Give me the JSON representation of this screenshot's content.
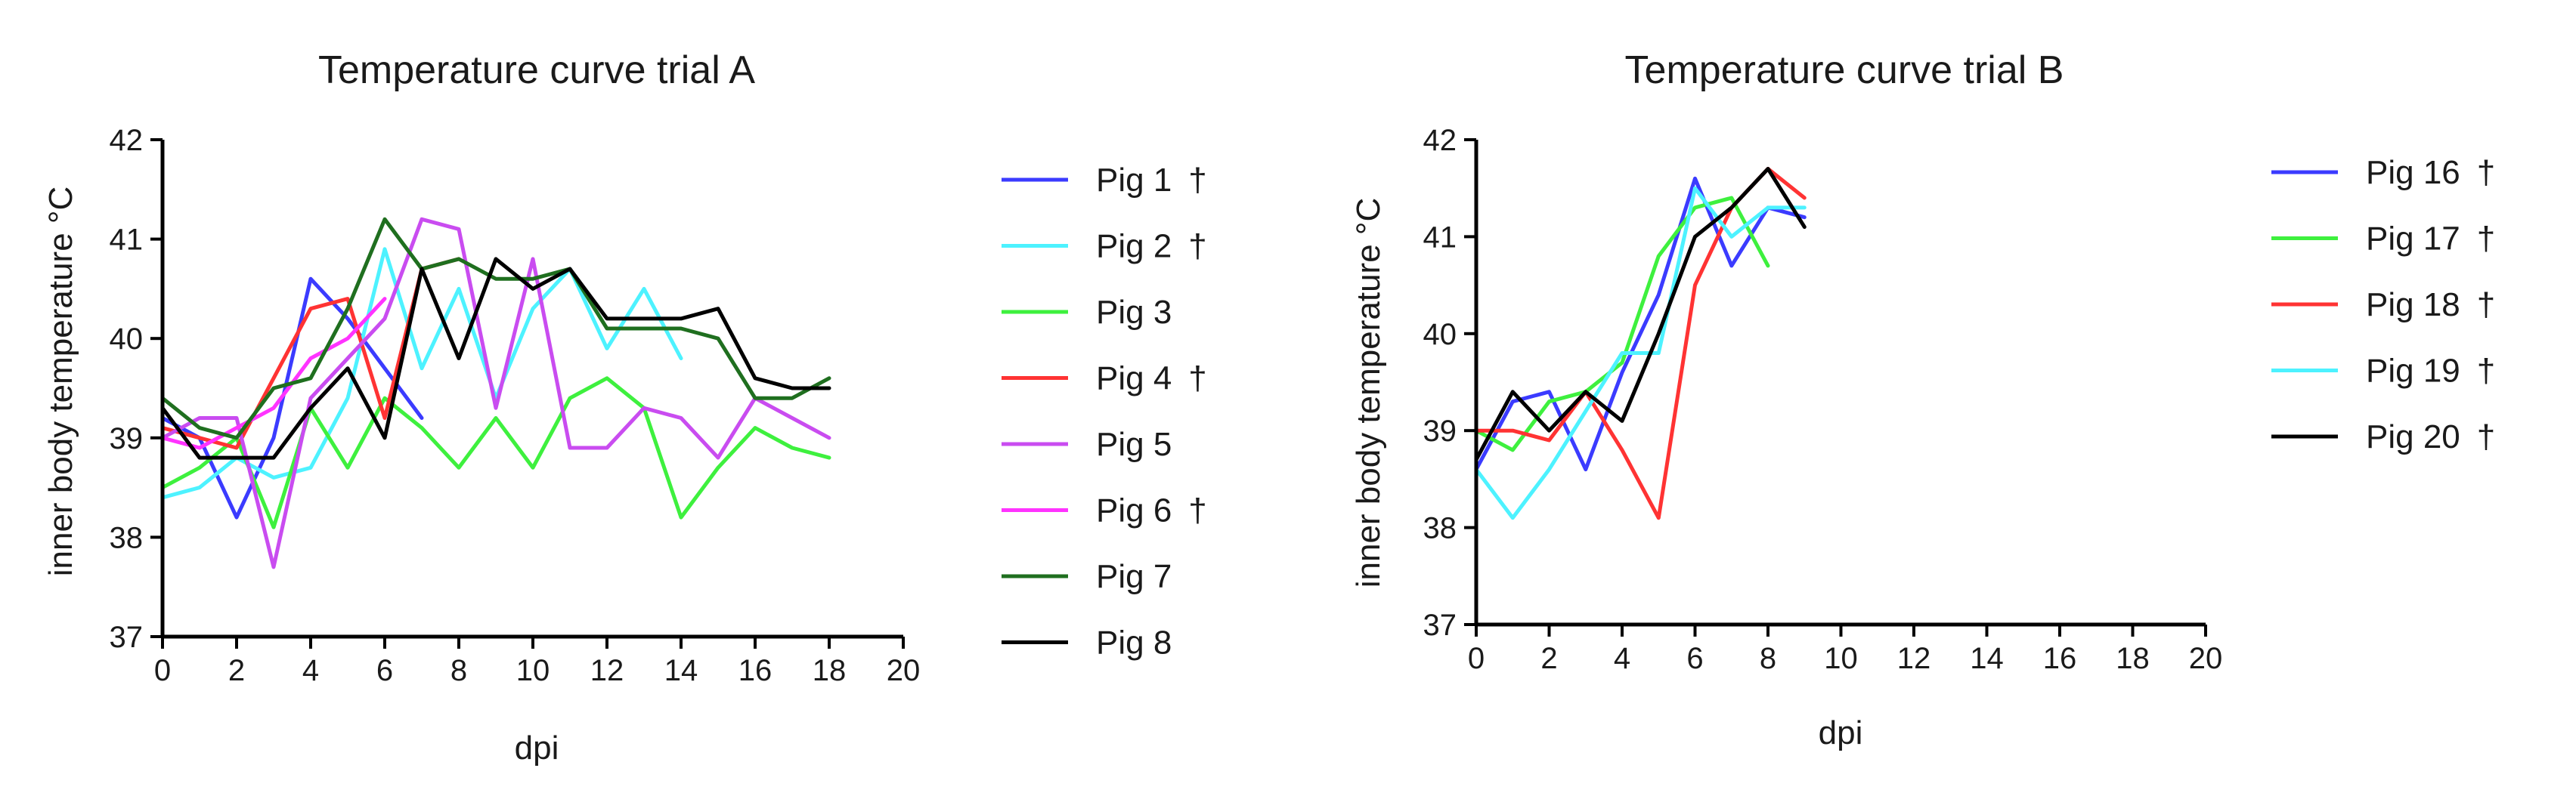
{
  "chart_data": [
    {
      "type": "line",
      "title": "Temperature curve trial A",
      "xlabel": "dpi",
      "ylabel": "inner body temperature °C",
      "xlim": [
        0,
        20
      ],
      "ylim": [
        37,
        42
      ],
      "xticks": [
        0,
        2,
        4,
        6,
        8,
        10,
        12,
        14,
        16,
        18,
        20
      ],
      "yticks": [
        37,
        38,
        39,
        40,
        41,
        42
      ],
      "grid": false,
      "legend": "right",
      "series": [
        {
          "name": "Pig 1",
          "marker": "†",
          "color": "#3b3bff",
          "x": [
            0,
            1,
            2,
            3,
            4,
            5,
            6,
            7
          ],
          "y": [
            39.2,
            39.0,
            38.2,
            39.0,
            40.6,
            40.2,
            39.7,
            39.2
          ]
        },
        {
          "name": "Pig 2",
          "marker": "†",
          "color": "#4df2ff",
          "x": [
            0,
            1,
            2,
            3,
            4,
            5,
            6,
            7,
            8,
            9,
            10,
            11,
            12,
            13,
            14
          ],
          "y": [
            38.4,
            38.5,
            38.8,
            38.6,
            38.7,
            39.4,
            40.9,
            39.7,
            40.5,
            39.4,
            40.3,
            40.7,
            39.9,
            40.5,
            39.8
          ]
        },
        {
          "name": "Pig 3",
          "marker": "",
          "color": "#3ef03e",
          "x": [
            0,
            1,
            2,
            3,
            4,
            5,
            6,
            7,
            8,
            9,
            10,
            11,
            12,
            13,
            14,
            15,
            16,
            17,
            18
          ],
          "y": [
            38.5,
            38.7,
            39.0,
            38.1,
            39.3,
            38.7,
            39.4,
            39.1,
            38.7,
            39.2,
            38.7,
            39.4,
            39.6,
            39.3,
            38.2,
            38.7,
            39.1,
            38.9,
            38.8
          ]
        },
        {
          "name": "Pig 4",
          "marker": "†",
          "color": "#ff3333",
          "x": [
            0,
            1,
            2,
            3,
            4,
            5,
            6,
            7,
            8
          ],
          "y": [
            39.1,
            39.0,
            38.9,
            39.6,
            40.3,
            40.4,
            39.2,
            40.7,
            40.8
          ]
        },
        {
          "name": "Pig 5",
          "marker": "",
          "color": "#c94cf0",
          "x": [
            0,
            1,
            2,
            3,
            4,
            5,
            6,
            7,
            8,
            9,
            10,
            11,
            12,
            13,
            14,
            15,
            16,
            17,
            18
          ],
          "y": [
            39.0,
            39.2,
            39.2,
            37.7,
            39.4,
            39.8,
            40.2,
            41.2,
            41.1,
            39.3,
            40.8,
            38.9,
            38.9,
            39.3,
            39.2,
            38.8,
            39.4,
            39.2,
            39.0
          ]
        },
        {
          "name": "Pig 6",
          "marker": "†",
          "color": "#ff33ff",
          "x": [
            0,
            1,
            2,
            3,
            4,
            5,
            6
          ],
          "y": [
            39.0,
            38.9,
            39.1,
            39.3,
            39.8,
            40.0,
            40.4
          ]
        },
        {
          "name": "Pig 7",
          "marker": "",
          "color": "#1f6f1f",
          "x": [
            0,
            1,
            2,
            3,
            4,
            5,
            6,
            7,
            8,
            9,
            10,
            11,
            12,
            13,
            14,
            15,
            16,
            17,
            18
          ],
          "y": [
            39.4,
            39.1,
            39.0,
            39.5,
            39.6,
            40.3,
            41.2,
            40.7,
            40.8,
            40.6,
            40.6,
            40.7,
            40.1,
            40.1,
            40.1,
            40.0,
            39.4,
            39.4,
            39.6
          ]
        },
        {
          "name": "Pig 8",
          "marker": "",
          "color": "#000000",
          "x": [
            0,
            1,
            2,
            3,
            4,
            5,
            6,
            7,
            8,
            9,
            10,
            11,
            12,
            13,
            14,
            15,
            16,
            17,
            18
          ],
          "y": [
            39.3,
            38.8,
            38.8,
            38.8,
            39.3,
            39.7,
            39.0,
            40.7,
            39.8,
            40.8,
            40.5,
            40.7,
            40.2,
            40.2,
            40.2,
            40.3,
            39.6,
            39.5,
            39.5
          ]
        }
      ]
    },
    {
      "type": "line",
      "title": "Temperature curve trial B",
      "xlabel": "dpi",
      "ylabel": "inner body temperature °C",
      "xlim": [
        0,
        20
      ],
      "ylim": [
        37,
        42
      ],
      "xticks": [
        0,
        2,
        4,
        6,
        8,
        10,
        12,
        14,
        16,
        18,
        20
      ],
      "yticks": [
        37,
        38,
        39,
        40,
        41,
        42
      ],
      "grid": false,
      "legend": "right",
      "series": [
        {
          "name": "Pig 16",
          "marker": "†",
          "color": "#3b3bff",
          "x": [
            0,
            1,
            2,
            3,
            4,
            5,
            6,
            7,
            8,
            9
          ],
          "y": [
            38.6,
            39.3,
            39.4,
            38.6,
            39.6,
            40.4,
            41.6,
            40.7,
            41.3,
            41.2
          ]
        },
        {
          "name": "Pig 17",
          "marker": "†",
          "color": "#3ef03e",
          "x": [
            0,
            1,
            2,
            3,
            4,
            5,
            6,
            7,
            8
          ],
          "y": [
            39.0,
            38.8,
            39.3,
            39.4,
            39.7,
            40.8,
            41.3,
            41.4,
            40.7
          ]
        },
        {
          "name": "Pig 18",
          "marker": "†",
          "color": "#ff3333",
          "x": [
            0,
            1,
            2,
            3,
            4,
            5,
            6,
            7,
            8,
            9
          ],
          "y": [
            39.0,
            39.0,
            38.9,
            39.4,
            38.8,
            38.1,
            40.5,
            41.3,
            41.7,
            41.4
          ]
        },
        {
          "name": "Pig 19",
          "marker": "†",
          "color": "#4df2ff",
          "x": [
            0,
            1,
            2,
            3,
            4,
            5,
            6,
            7,
            8,
            9
          ],
          "y": [
            38.6,
            38.1,
            38.6,
            39.2,
            39.8,
            39.8,
            41.5,
            41.0,
            41.3,
            41.3
          ]
        },
        {
          "name": "Pig 20",
          "marker": "†",
          "color": "#000000",
          "x": [
            0,
            1,
            2,
            3,
            4,
            5,
            6,
            7,
            8,
            9
          ],
          "y": [
            38.7,
            39.4,
            39.0,
            39.4,
            39.1,
            40.0,
            41.0,
            41.3,
            41.7,
            41.1
          ]
        }
      ]
    }
  ]
}
